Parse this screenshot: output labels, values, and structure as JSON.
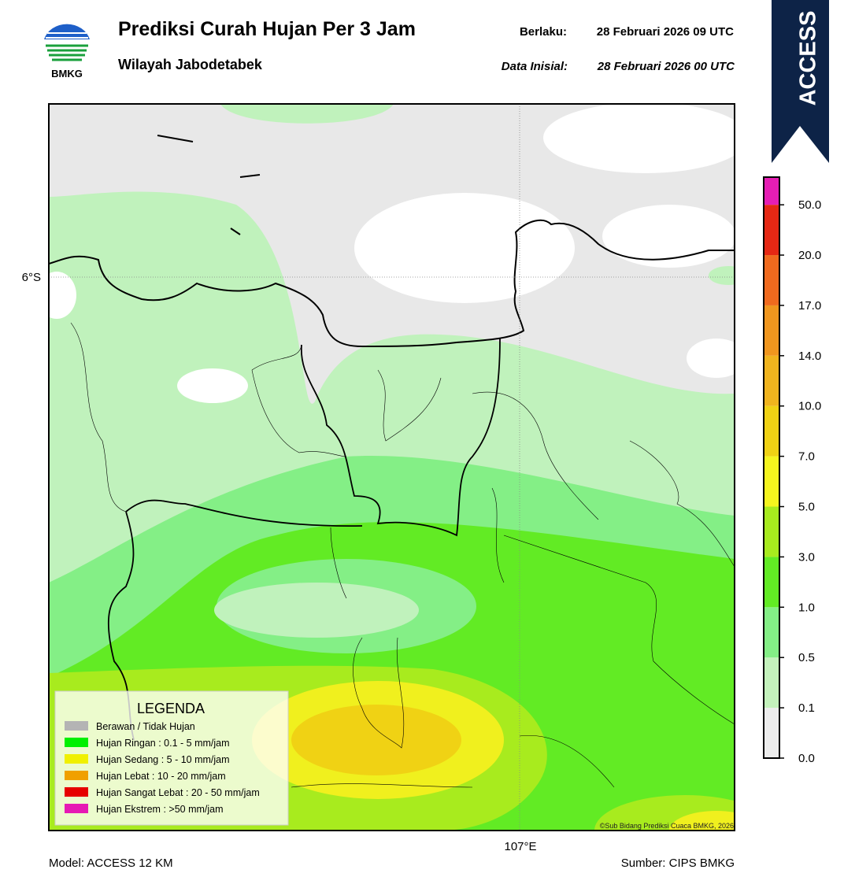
{
  "header": {
    "logo_text": "BMKG",
    "title": "Prediksi Curah Hujan Per 3 Jam",
    "subtitle": "Wilayah Jabodetabek",
    "valid_label": "Berlaku:",
    "valid_time": "28 Februari 2026 09 UTC",
    "init_label": "Data Inisial:",
    "init_time": "28 Februari 2026 00 UTC"
  },
  "badge": "ACCESS",
  "map": {
    "lat_label": "6°S",
    "lon_label": "107°E",
    "credit": "©Sub Bidang Prediksi Cuaca BMKG, 2026"
  },
  "legend": {
    "title": "LEGENDA",
    "items": [
      {
        "label": "Berawan / Tidak Hujan",
        "color": "#b4b4b4"
      },
      {
        "label": "Hujan Ringan : 0.1 - 5 mm/jam",
        "color": "#00f000"
      },
      {
        "label": "Hujan Sedang : 5 - 10 mm/jam",
        "color": "#f0f000"
      },
      {
        "label": "Hujan Lebat : 10 - 20 mm/jam",
        "color": "#f0a000"
      },
      {
        "label": "Hujan Sangat Lebat : 20 - 50 mm/jam",
        "color": "#e60000"
      },
      {
        "label": "Hujan Ekstrem : >50 mm/jam",
        "color": "#e619b4"
      }
    ]
  },
  "colorbar": {
    "ticks": [
      "0.0",
      "0.1",
      "0.5",
      "1.0",
      "3.0",
      "5.0",
      "7.0",
      "10.0",
      "14.0",
      "17.0",
      "20.0",
      "50.0"
    ],
    "colors": [
      "#ededed",
      "#c4f2bc",
      "#84ef86",
      "#62eb24",
      "#a8eb1e",
      "#f5f51e",
      "#f0d214",
      "#f0b41e",
      "#f0961e",
      "#f06a1e",
      "#e62814",
      "#e61eb4"
    ]
  },
  "footer": {
    "model": "Model: ACCESS 12 KM",
    "source": "Sumber: CIPS BMKG"
  }
}
